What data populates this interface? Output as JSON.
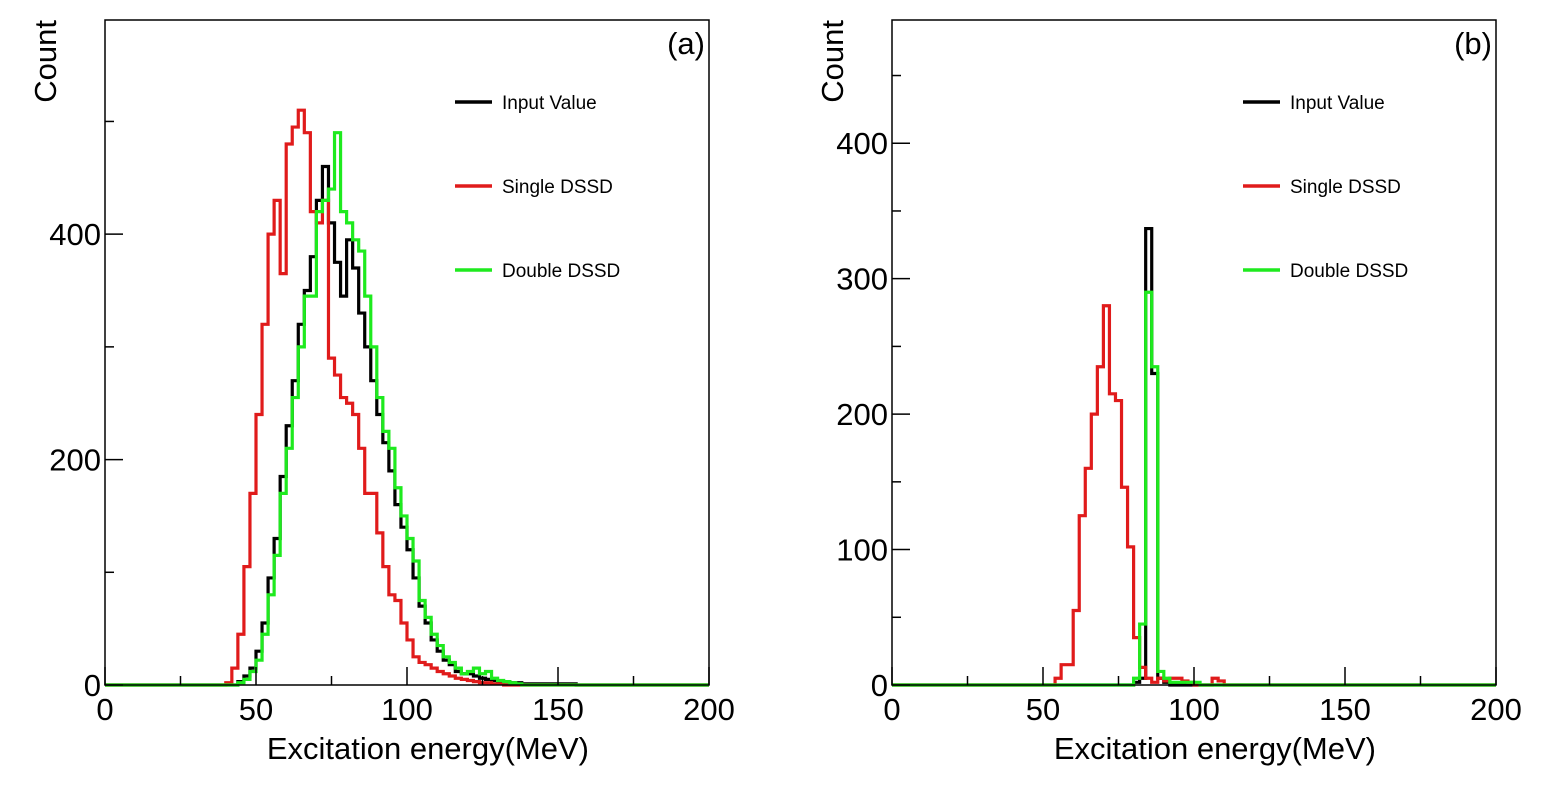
{
  "colors": {
    "input": "#000000",
    "single": "#e01b1b",
    "double": "#1eea1e"
  },
  "chart_data": [
    {
      "type": "histogram",
      "panel_label": "(a)",
      "xlabel": "Excitation energy(MeV)",
      "ylabel": "Count",
      "xlim": [
        0,
        200
      ],
      "ylim": [
        0,
        590
      ],
      "x_ticks": [
        "0",
        "50",
        "100",
        "150",
        "200"
      ],
      "x_tick_values": [
        0,
        50,
        100,
        150,
        200
      ],
      "y_ticks": [
        "0",
        "200",
        "400"
      ],
      "y_tick_values": [
        0,
        200,
        400
      ],
      "y_minor_values": [
        100,
        300,
        500
      ],
      "bin_width": 2,
      "legend": "top-right",
      "series": [
        {
          "name": "Input Value",
          "color": "#000000",
          "x_start": 40,
          "values": [
            0,
            0,
            3,
            8,
            15,
            30,
            55,
            95,
            130,
            185,
            230,
            270,
            320,
            350,
            380,
            430,
            460,
            410,
            375,
            345,
            395,
            370,
            330,
            300,
            270,
            240,
            215,
            190,
            160,
            140,
            120,
            95,
            70,
            55,
            40,
            30,
            22,
            18,
            12,
            10,
            10,
            8,
            6,
            5,
            4,
            3,
            3,
            2,
            2,
            1,
            1,
            1,
            1,
            1,
            1,
            1,
            1,
            1
          ]
        },
        {
          "name": "Single DSSD",
          "color": "#e01b1b",
          "x_start": 40,
          "values": [
            2,
            15,
            45,
            105,
            170,
            240,
            320,
            400,
            430,
            365,
            480,
            495,
            510,
            490,
            420,
            410,
            430,
            290,
            275,
            255,
            250,
            240,
            210,
            170,
            170,
            135,
            105,
            80,
            75,
            55,
            40,
            25,
            20,
            18,
            15,
            12,
            10,
            8,
            6,
            5,
            4,
            3,
            2,
            2,
            1,
            1
          ]
        },
        {
          "name": "Double DSSD",
          "color": "#1eea1e",
          "x_start": 40,
          "values": [
            0,
            0,
            2,
            5,
            12,
            22,
            45,
            80,
            115,
            170,
            210,
            255,
            300,
            345,
            345,
            420,
            430,
            440,
            490,
            420,
            410,
            395,
            385,
            345,
            300,
            255,
            225,
            210,
            175,
            150,
            130,
            110,
            75,
            60,
            45,
            35,
            25,
            20,
            15,
            10,
            12,
            15,
            10,
            12,
            6,
            4,
            3,
            2,
            1
          ]
        }
      ]
    },
    {
      "type": "histogram",
      "panel_label": "(b)",
      "xlabel": "Excitation energy(MeV)",
      "ylabel": "Count",
      "xlim": [
        0,
        200
      ],
      "ylim": [
        0,
        491
      ],
      "x_ticks": [
        "0",
        "50",
        "100",
        "150",
        "200"
      ],
      "x_tick_values": [
        0,
        50,
        100,
        150,
        200
      ],
      "y_ticks": [
        "0",
        "100",
        "200",
        "300",
        "400"
      ],
      "y_tick_values": [
        0,
        100,
        200,
        300,
        400
      ],
      "y_minor_values": [
        50,
        150,
        250,
        350,
        450
      ],
      "bin_width": 2,
      "legend": "top-right",
      "series": [
        {
          "name": "Input Value",
          "color": "#000000",
          "x_start": 80,
          "values": [
            2,
            5,
            337,
            230,
            5,
            2
          ]
        },
        {
          "name": "Single DSSD",
          "color": "#e01b1b",
          "x_start": 54,
          "values": [
            5,
            15,
            15,
            55,
            125,
            160,
            200,
            235,
            280,
            215,
            210,
            146,
            102,
            35,
            13,
            5,
            2,
            5,
            3,
            5,
            5,
            3,
            2,
            0,
            0,
            0,
            5,
            3
          ]
        },
        {
          "name": "Double DSSD",
          "color": "#1eea1e",
          "x_start": 80,
          "values": [
            5,
            45,
            290,
            235,
            10,
            5,
            2,
            2,
            2,
            2,
            2
          ]
        }
      ]
    }
  ]
}
